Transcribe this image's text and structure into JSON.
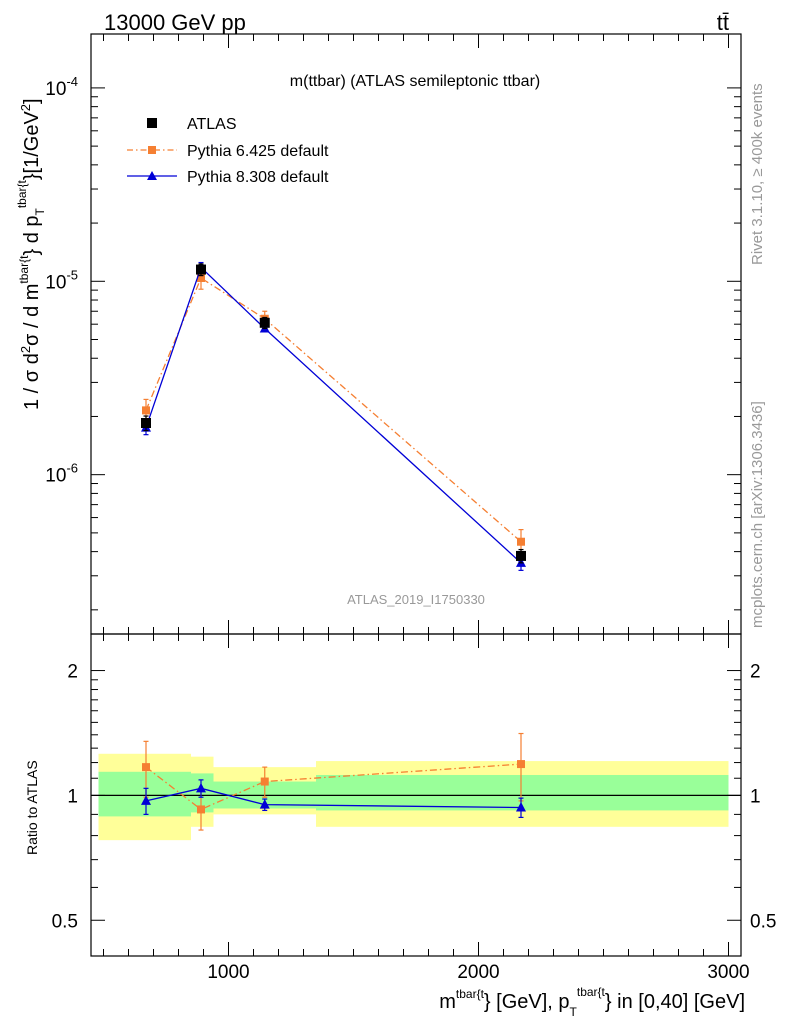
{
  "header": {
    "left_title": "13000 GeV pp",
    "right_title": "tt̄"
  },
  "side_labels": {
    "rivet": "Rivet 3.1.10, ≥ 400k events",
    "mcplots": "mcplots.cern.ch [arXiv:1306.3436]"
  },
  "chart_data": [
    {
      "type": "scatter",
      "panel": "main",
      "title": "m(ttbar) (ATLAS semileptonic ttbar)",
      "watermark": "ATLAS_2019_I1750330",
      "ylabel": "1 / σ d²σ / d m^{tbar{t}} d p_T^{tbar{t}} [1/GeV²]",
      "yscale": "log",
      "xlim": [
        450,
        3050
      ],
      "ylim": [
        1.5e-07,
        0.00019
      ],
      "ytick_labels": [
        "10^{-4}",
        "10^{-5}",
        "10^{-6}"
      ],
      "legend_position": "top-left",
      "series": [
        {
          "name": "ATLAS",
          "color": "#000000",
          "marker": "square",
          "line": "none",
          "x": [
            670,
            890,
            1145,
            2170
          ],
          "y": [
            1.85e-06,
            1.15e-05,
            6.1e-06,
            3.8e-07
          ],
          "yerr": [
            1.6e-07,
            8e-07,
            4e-07,
            3e-08
          ]
        },
        {
          "name": "Pythia 6.425 default",
          "color": "#f57f32",
          "marker": "square",
          "line": "dashdot",
          "x": [
            670,
            890,
            1145,
            2170
          ],
          "y": [
            2.15e-06,
            1.04e-05,
            6.4e-06,
            4.5e-07
          ],
          "yerr": [
            3e-07,
            1.3e-06,
            6e-07,
            7e-08
          ]
        },
        {
          "name": "Pythia 8.308 default",
          "color": "#0000d6",
          "marker": "triangle",
          "line": "solid",
          "x": [
            670,
            890,
            1145,
            2170
          ],
          "y": [
            1.75e-06,
            1.18e-05,
            5.7e-06,
            3.5e-07
          ],
          "yerr": [
            1.4e-07,
            7e-07,
            2e-07,
            3e-08
          ]
        }
      ]
    },
    {
      "type": "scatter",
      "panel": "ratio",
      "ylabel": "Ratio to ATLAS",
      "xlabel": "m^{tbar{t}} [GeV], p_T^{tbar{t}} in [0,40] [GeV]",
      "yscale": "log",
      "xlim": [
        450,
        3050
      ],
      "ylim": [
        0.41,
        2.45
      ],
      "x_ticks": [
        1000,
        2000,
        3000
      ],
      "x_tick_labels": [
        "1000",
        "2000",
        "3000"
      ],
      "y_ticks": [
        0.5,
        1,
        2
      ],
      "y_tick_labels": [
        "0.5",
        "1",
        "2"
      ],
      "bands": [
        {
          "x0": 480,
          "x1": 850,
          "green": [
            0.89,
            1.14
          ],
          "yellow": [
            0.78,
            1.26
          ]
        },
        {
          "x0": 850,
          "x1": 940,
          "green": [
            0.91,
            1.13
          ],
          "yellow": [
            0.84,
            1.24
          ]
        },
        {
          "x0": 940,
          "x1": 1350,
          "green": [
            0.93,
            1.08
          ],
          "yellow": [
            0.9,
            1.17
          ]
        },
        {
          "x0": 1350,
          "x1": 3000,
          "green": [
            0.92,
            1.12
          ],
          "yellow": [
            0.84,
            1.21
          ]
        }
      ],
      "series": [
        {
          "name": "Pythia 6.425 default",
          "color": "#f57f32",
          "marker": "square",
          "line": "dashdot",
          "x": [
            670,
            890,
            1145,
            2170
          ],
          "y": [
            1.17,
            0.925,
            1.08,
            1.19
          ],
          "yerr": [
            0.18,
            0.1,
            0.09,
            0.22
          ]
        },
        {
          "name": "Pythia 8.308 default",
          "color": "#0000d6",
          "marker": "triangle",
          "line": "solid",
          "x": [
            670,
            890,
            1145,
            2170
          ],
          "y": [
            0.97,
            1.04,
            0.95,
            0.935
          ],
          "yerr": [
            0.07,
            0.05,
            0.03,
            0.05
          ]
        }
      ]
    }
  ]
}
